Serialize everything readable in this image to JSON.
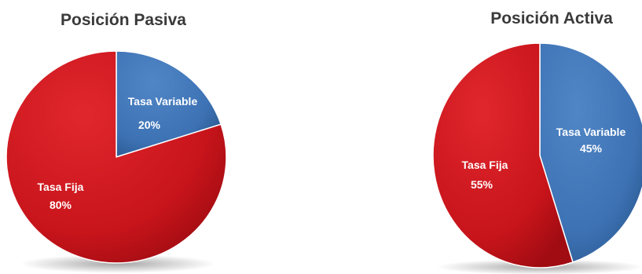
{
  "colors": {
    "fixed": "#c8141b",
    "variable": "#3d72b4",
    "title": "#3a3a3a"
  },
  "chart_data": [
    {
      "type": "pie",
      "title": "Posición Pasiva",
      "slices": [
        {
          "name": "Tasa Variable",
          "value": 20,
          "label": "20%"
        },
        {
          "name": "Tasa Fija",
          "value": 80,
          "label": "80%"
        }
      ]
    },
    {
      "type": "pie",
      "title": "Posición Activa",
      "slices": [
        {
          "name": "Tasa Variable",
          "value": 45,
          "label": "45%"
        },
        {
          "name": "Tasa Fija",
          "value": 55,
          "label": "55%"
        }
      ]
    }
  ]
}
